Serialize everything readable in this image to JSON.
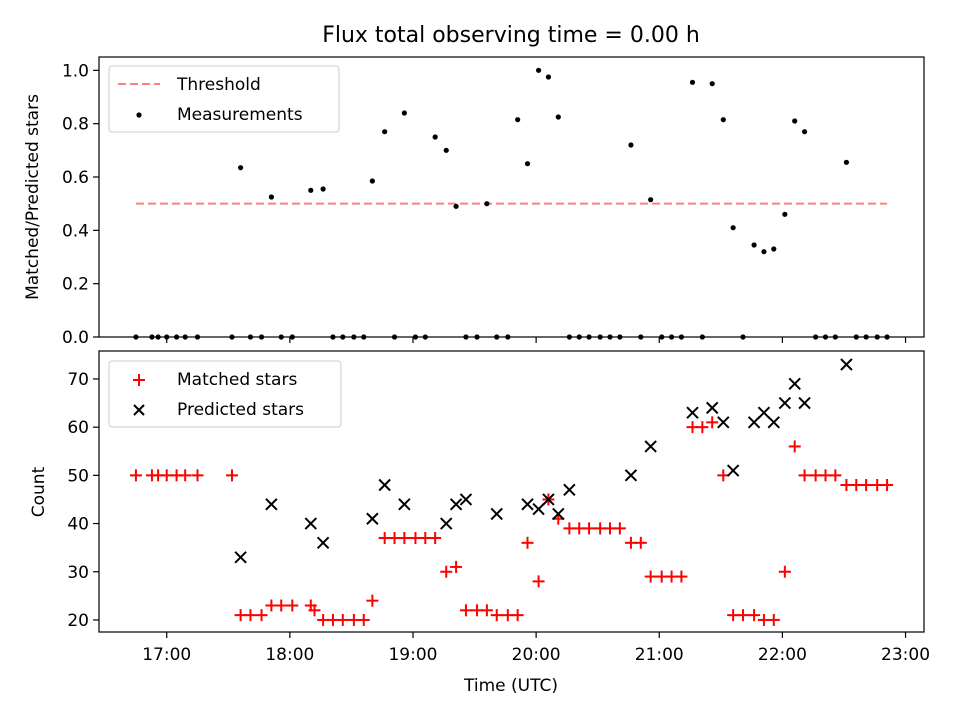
{
  "figure": {
    "title": "Flux total observing time = 0.00 h"
  },
  "chart_data": [
    {
      "type": "scatter",
      "ylabel": "Matched/Predicted stars",
      "xlim": [
        16.45,
        23.15
      ],
      "ylim": [
        0,
        1.05
      ],
      "yticks": [
        0.0,
        0.2,
        0.4,
        0.6,
        0.8,
        1.0
      ],
      "ytick_labels": [
        "0.0",
        "0.2",
        "0.4",
        "0.6",
        "0.8",
        "1.0"
      ],
      "legend": {
        "position": "top-left",
        "entries": [
          {
            "label": "Threshold",
            "style": "dashed-line",
            "color": "#ff7f7f"
          },
          {
            "label": "Measurements",
            "style": "dot",
            "color": "#000000"
          }
        ]
      },
      "threshold": {
        "value": 0.5,
        "x": [
          16.75,
          22.85
        ]
      },
      "series": [
        {
          "name": "Measurements",
          "color": "#000000",
          "x": [
            16.75,
            16.88,
            16.93,
            17.0,
            17.08,
            17.15,
            17.25,
            17.53,
            17.6,
            17.68,
            17.77,
            17.85,
            17.93,
            18.02,
            18.17,
            18.27,
            18.35,
            18.43,
            18.52,
            18.6,
            18.67,
            18.77,
            18.85,
            18.93,
            19.02,
            19.1,
            19.18,
            19.27,
            19.35,
            19.43,
            19.52,
            19.6,
            19.68,
            19.77,
            19.85,
            19.93,
            20.02,
            20.1,
            20.18,
            20.27,
            20.35,
            20.43,
            20.52,
            20.6,
            20.68,
            20.77,
            20.85,
            20.93,
            21.02,
            21.1,
            21.18,
            21.27,
            21.35,
            21.43,
            21.52,
            21.6,
            21.68,
            21.77,
            21.85,
            21.93,
            22.02,
            22.1,
            22.18,
            22.27,
            22.35,
            22.43,
            22.52,
            22.6,
            22.68,
            22.77,
            22.85
          ],
          "y": [
            0,
            0,
            0,
            0,
            0,
            0,
            0,
            0,
            0.635,
            0,
            0,
            0.525,
            0,
            0,
            0.55,
            0.555,
            0,
            0,
            0,
            0,
            0.585,
            0.77,
            0,
            0.84,
            0,
            0,
            0.75,
            0.7,
            0.49,
            0,
            0,
            0.5,
            0,
            0,
            0.815,
            0.65,
            1.0,
            0.975,
            0.825,
            0,
            0,
            0,
            0,
            0,
            0,
            0.72,
            0,
            0.515,
            0,
            0,
            0,
            0.955,
            0,
            0.95,
            0.815,
            0.41,
            0,
            0.345,
            0.32,
            0.33,
            0.46,
            0.81,
            0.77,
            0,
            0,
            0,
            0.655,
            0,
            0,
            0,
            0
          ]
        }
      ]
    },
    {
      "type": "scatter",
      "xlabel": "Time (UTC)",
      "ylabel": "Count",
      "xlim": [
        16.45,
        23.15
      ],
      "ylim": [
        17.5,
        75.8
      ],
      "xticks": [
        17,
        18,
        19,
        20,
        21,
        22,
        23
      ],
      "xtick_labels": [
        "17:00",
        "18:00",
        "19:00",
        "20:00",
        "21:00",
        "22:00",
        "23:00"
      ],
      "yticks": [
        20,
        30,
        40,
        50,
        60,
        70
      ],
      "ytick_labels": [
        "20",
        "30",
        "40",
        "50",
        "60",
        "70"
      ],
      "legend": {
        "position": "top-left",
        "entries": [
          {
            "label": "Matched stars",
            "style": "plus",
            "color": "#ff0000"
          },
          {
            "label": "Predicted stars",
            "style": "x",
            "color": "#000000"
          }
        ]
      },
      "series": [
        {
          "name": "Matched stars",
          "marker": "plus",
          "color": "#ff0000",
          "x": [
            16.75,
            16.88,
            16.93,
            17.0,
            17.08,
            17.15,
            17.25,
            17.53,
            17.6,
            17.68,
            17.77,
            17.85,
            17.93,
            18.02,
            18.17,
            18.2,
            18.27,
            18.35,
            18.43,
            18.52,
            18.6,
            18.67,
            18.77,
            18.85,
            18.93,
            19.02,
            19.1,
            19.18,
            19.27,
            19.35,
            19.43,
            19.52,
            19.6,
            19.68,
            19.77,
            19.85,
            19.93,
            20.02,
            20.1,
            20.18,
            20.27,
            20.35,
            20.43,
            20.52,
            20.6,
            20.68,
            20.77,
            20.85,
            20.93,
            21.02,
            21.1,
            21.18,
            21.27,
            21.35,
            21.43,
            21.52,
            21.6,
            21.68,
            21.77,
            21.85,
            21.93,
            22.02,
            22.1,
            22.18,
            22.27,
            22.35,
            22.43,
            22.52,
            22.6,
            22.68,
            22.77,
            22.85
          ],
          "y": [
            50,
            50,
            50,
            50,
            50,
            50,
            50,
            50,
            21,
            21,
            21,
            23,
            23,
            23,
            23,
            22,
            20,
            20,
            20,
            20,
            20,
            24,
            37,
            37,
            37,
            37,
            37,
            37,
            30,
            31,
            22,
            22,
            22,
            21,
            21,
            21,
            36,
            28,
            45,
            41,
            39,
            39,
            39,
            39,
            39,
            39,
            36,
            36,
            29,
            29,
            29,
            29,
            60,
            60,
            61,
            50,
            21,
            21,
            21,
            20,
            20,
            30,
            56,
            50,
            50,
            50,
            50,
            48,
            48,
            48,
            48,
            48
          ]
        },
        {
          "name": "Predicted stars",
          "marker": "x",
          "color": "#000000",
          "x": [
            17.6,
            17.85,
            18.17,
            18.27,
            18.67,
            18.77,
            18.93,
            19.27,
            19.35,
            19.43,
            19.68,
            19.93,
            20.02,
            20.1,
            20.18,
            20.27,
            20.77,
            20.93,
            21.27,
            21.43,
            21.52,
            21.6,
            21.77,
            21.85,
            21.93,
            22.02,
            22.1,
            22.18,
            22.52
          ],
          "y": [
            33,
            44,
            40,
            36,
            41,
            48,
            44,
            40,
            44,
            45,
            42,
            44,
            43,
            45,
            42,
            47,
            50,
            56,
            63,
            64,
            61,
            51,
            61,
            63,
            61,
            65,
            69,
            65,
            73
          ]
        }
      ]
    }
  ]
}
